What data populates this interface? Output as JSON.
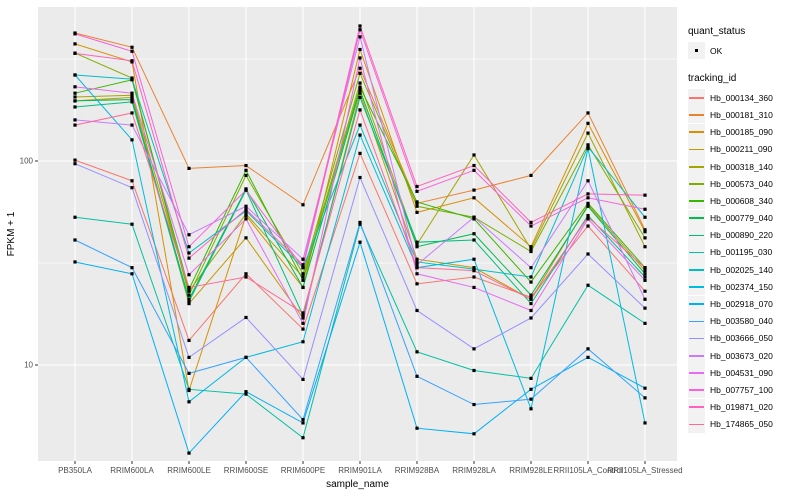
{
  "figure": {
    "y_axis_title": "FPKM + 1",
    "x_axis_title": "sample_name",
    "panel_background": "#EBEBEB",
    "gridline_color": "#FFFFFF",
    "tick_label_color": "#4D4D4D",
    "point_color": "#000000"
  },
  "legend": {
    "quant_title": "quant_status",
    "quant_ok_label": "OK",
    "tracking_title": "tracking_id"
  },
  "chart_data": {
    "type": "line",
    "scale_y": "log10",
    "ylabel": "FPKM + 1",
    "xlabel": "sample_name",
    "legend_position": "right",
    "point_shape": "filled-black-square",
    "y_major_ticks": [
      10,
      100
    ],
    "y_minor_gridlines": [
      31.6,
      316
    ],
    "ylim": [
      3.2,
      560
    ],
    "x_categories": [
      "PB350LA",
      "RRIM600LA",
      "RRIM600LE",
      "RRIM600SE",
      "RRIM600PE",
      "RRIM901LA",
      "RRIM928BA",
      "RRIM928LA",
      "RRIM928LE",
      "RRII105LA_Control",
      "RRII105LA_Stressed"
    ],
    "series": [
      {
        "tracking_id": "Hb_000134_360",
        "color": "#F8766D",
        "quant_status": "OK",
        "values": [
          101,
          80,
          13.2,
          28,
          15,
          109,
          25,
          27,
          21.5,
          48,
          23
        ]
      },
      {
        "tracking_id": "Hb_000181_310",
        "color": "#EA8331",
        "quant_status": "OK",
        "values": [
          424,
          361,
          92,
          95,
          61,
          285,
          62,
          72,
          85,
          172,
          46
        ]
      },
      {
        "tracking_id": "Hb_000185_090",
        "color": "#D89000",
        "quant_status": "OK",
        "values": [
          375,
          306,
          7.5,
          54,
          24,
          352,
          56,
          66,
          38,
          153,
          45
        ]
      },
      {
        "tracking_id": "Hb_000211_090",
        "color": "#C09B00",
        "quant_status": "OK",
        "values": [
          197,
          205,
          20,
          42,
          17,
          215,
          33,
          30,
          21,
          61,
          29
        ]
      },
      {
        "tracking_id": "Hb_000318_140",
        "color": "#A3A500",
        "quant_status": "OK",
        "values": [
          206,
          210,
          23,
          55,
          27,
          241,
          39,
          107,
          37,
          137,
          38
        ]
      },
      {
        "tracking_id": "Hb_000573_040",
        "color": "#7CAE00",
        "quant_status": "OK",
        "values": [
          338,
          255,
          22,
          85,
          28,
          269,
          60,
          53,
          36,
          120,
          42
        ]
      },
      {
        "tracking_id": "Hb_000608_340",
        "color": "#39B600",
        "quant_status": "OK",
        "values": [
          215,
          250,
          23.5,
          90,
          26,
          230,
          63,
          52,
          25.5,
          62,
          30
        ]
      },
      {
        "tracking_id": "Hb_000779_040",
        "color": "#00BB4E",
        "quant_status": "OK",
        "values": [
          197,
          200,
          21,
          73,
          24,
          223,
          38,
          44,
          22,
          60,
          28
        ]
      },
      {
        "tracking_id": "Hb_000890_220",
        "color": "#00BF7D",
        "quant_status": "OK",
        "values": [
          184,
          195,
          20.5,
          72,
          17.5,
          205,
          40,
          41,
          20,
          54,
          27
        ]
      },
      {
        "tracking_id": "Hb_001195_030",
        "color": "#00C1A3",
        "quant_status": "OK",
        "values": [
          53,
          49,
          7.6,
          7.2,
          4.4,
          49,
          11.6,
          9.4,
          8.6,
          24.6,
          16
        ]
      },
      {
        "tracking_id": "Hb_002025_140",
        "color": "#00BFC4",
        "quant_status": "OK",
        "values": [
          264,
          252,
          35.4,
          57,
          30,
          150,
          32,
          29.5,
          27,
          117,
          53
        ]
      },
      {
        "tracking_id": "Hb_002374_150",
        "color": "#00BAE0",
        "quant_status": "OK",
        "values": [
          264,
          127,
          6.6,
          10.9,
          13,
          134,
          30,
          33,
          6.1,
          115,
          5.2
        ]
      },
      {
        "tracking_id": "Hb_002918_070",
        "color": "#00B0F6",
        "quant_status": "OK",
        "values": [
          32,
          28,
          3.7,
          7.4,
          5.2,
          40,
          4.9,
          4.6,
          7.6,
          10.9,
          7.7
        ]
      },
      {
        "tracking_id": "Hb_003580_040",
        "color": "#35A2FF",
        "quant_status": "OK",
        "values": [
          41,
          30,
          9.1,
          10.9,
          5.4,
          50,
          8.8,
          6.4,
          6.8,
          12,
          6.9
        ]
      },
      {
        "tracking_id": "Hb_003666_050",
        "color": "#9590FF",
        "quant_status": "OK",
        "values": [
          97,
          74,
          10.9,
          17.1,
          8.5,
          83,
          18.5,
          12,
          17,
          35,
          19
        ]
      },
      {
        "tracking_id": "Hb_003673_020",
        "color": "#C77CFF",
        "quant_status": "OK",
        "values": [
          159,
          150,
          43.5,
          60,
          33,
          406,
          31,
          53,
          30,
          80,
          21
        ]
      },
      {
        "tracking_id": "Hb_004531_090",
        "color": "#E76BF3",
        "quant_status": "OK",
        "values": [
          231,
          215,
          27.7,
          52,
          16,
          320,
          28,
          24,
          18.5,
          52,
          26
        ]
      },
      {
        "tracking_id": "Hb_007757_100",
        "color": "#FA62DB",
        "quant_status": "OK",
        "values": [
          420,
          345,
          38,
          72,
          30,
          440,
          71,
          90,
          48,
          66,
          58
        ]
      },
      {
        "tracking_id": "Hb_019871_020",
        "color": "#FF62BC",
        "quant_status": "OK",
        "values": [
          337,
          310,
          33.4,
          58,
          31,
          459,
          75,
          95,
          50,
          69,
          68
        ]
      },
      {
        "tracking_id": "Hb_174865_050",
        "color": "#FF6A98",
        "quant_status": "OK",
        "values": [
          150,
          172,
          24,
          27,
          18,
          178,
          30,
          29,
          21,
          53,
          30
        ]
      }
    ]
  }
}
